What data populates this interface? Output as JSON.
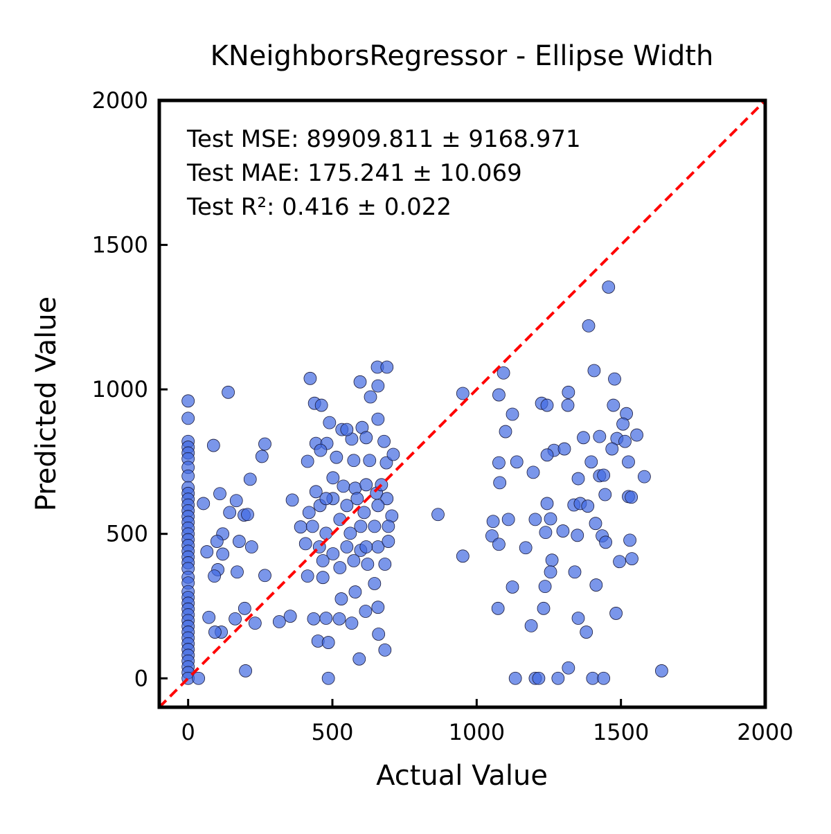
{
  "chart_data": {
    "type": "scatter",
    "title": "KNeighborsRegressor - Ellipse Width",
    "x_label": "Actual Value",
    "y_label": "Predicted Value",
    "annotations": [
      "Test MSE: 89909.811 ± 9168.971",
      "Test MAE: 175.241 ± 10.069",
      "Test R²: 0.416 ± 0.022"
    ],
    "xlim": [
      -100,
      2000
    ],
    "ylim": [
      -100,
      2000
    ],
    "xticks": [
      0,
      500,
      1000,
      1500,
      2000
    ],
    "yticks": [
      0,
      500,
      1000,
      1500,
      2000
    ],
    "color": "#4169e1",
    "edge_color": "#1a1a3a",
    "identity_line_color": "#ff0000",
    "series": [
      {
        "x": [
          0,
          0,
          0,
          0,
          0,
          0,
          0,
          0,
          0,
          0,
          0,
          0,
          0,
          0,
          0,
          0,
          0,
          0,
          0,
          0,
          0,
          0,
          0,
          0,
          0,
          0,
          0,
          0,
          0,
          0,
          0,
          0,
          0,
          0,
          0,
          0,
          0,
          0,
          0,
          0,
          0,
          36,
          139,
          88,
          266,
          256,
          215,
          53,
          110,
          167,
          144,
          194,
          206,
          120,
          100,
          177,
          220,
          65,
          103,
          170,
          266,
          91,
          72,
          115,
          93,
          196,
          232,
          199,
          316,
          354,
          163,
          120,
          423,
          656,
          689,
          596,
          658,
          632,
          438,
          462,
          658,
          490,
          533,
          603,
          443,
          481,
          567,
          617,
          679,
          414,
          459,
          514,
          574,
          629,
          687,
          711,
          361,
          419,
          390,
          457,
          502,
          538,
          579,
          617,
          653,
          689,
          706,
          431,
          478,
          526,
          562,
          598,
          646,
          694,
          407,
          455,
          502,
          550,
          598,
          658,
          694,
          467,
          526,
          574,
          622,
          682,
          414,
          467,
          531,
          579,
          646,
          658,
          615,
          567,
          524,
          435,
          478,
          450,
          486,
          660,
          682,
          593,
          486,
          866,
          550,
          502,
          550,
          610,
          658,
          478,
          617,
          443,
          586,
          670,
          1457,
          1388,
          1407,
          1478,
          1093,
          1077,
          952,
          1318,
          1225,
          1244,
          1316,
          1124,
          1474,
          1519,
          1507,
          1100,
          1370,
          1426,
          1486,
          1514,
          1555,
          1469,
          1268,
          1244,
          1304,
          1077,
          1139,
          1526,
          1397,
          1196,
          1080,
          1352,
          1426,
          1440,
          1581,
          1244,
          1337,
          1359,
          1385,
          1445,
          1526,
          1536,
          1057,
          1110,
          1203,
          1256,
          1412,
          1239,
          1299,
          1349,
          1053,
          1435,
          1077,
          1170,
          1447,
          1531,
          1261,
          1538,
          1495,
          1256,
          1340,
          1124,
          1237,
          1414,
          1074,
          1232,
          1352,
          1189,
          1380,
          1483,
          1318,
          1134,
          1203,
          1215,
          1282,
          1402,
          1440,
          1641,
          952
        ],
        "values": [
          960,
          900,
          820,
          800,
          780,
          760,
          730,
          700,
          660,
          640,
          620,
          600,
          580,
          560,
          540,
          520,
          500,
          480,
          460,
          440,
          420,
          400,
          380,
          350,
          330,
          300,
          280,
          260,
          240,
          220,
          200,
          180,
          160,
          140,
          120,
          100,
          80,
          60,
          40,
          20,
          0,
          0,
          990,
          806,
          811,
          768,
          689,
          605,
          639,
          615,
          574,
          565,
          567,
          500,
          474,
          474,
          455,
          438,
          376,
          368,
          356,
          354,
          211,
          160,
          160,
          242,
          191,
          26,
          196,
          215,
          206,
          430,
          1038,
          1077,
          1077,
          1026,
          1012,
          974,
          952,
          945,
          897,
          885,
          861,
          868,
          813,
          813,
          828,
          833,
          820,
          751,
          789,
          765,
          754,
          754,
          746,
          775,
          617,
          574,
          524,
          598,
          622,
          665,
          658,
          670,
          641,
          622,
          562,
          526,
          502,
          550,
          502,
          526,
          526,
          526,
          466,
          455,
          431,
          455,
          443,
          455,
          474,
          407,
          383,
          407,
          395,
          395,
          354,
          349,
          275,
          299,
          328,
          246,
          232,
          191,
          206,
          206,
          208,
          129,
          124,
          153,
          98,
          67,
          0,
          567,
          861,
          694,
          598,
          574,
          598,
          622,
          455,
          646,
          622,
          670,
          1354,
          1220,
          1065,
          1036,
          1057,
          981,
          986,
          990,
          952,
          945,
          945,
          914,
          945,
          916,
          880,
          854,
          833,
          837,
          830,
          820,
          842,
          794,
          789,
          773,
          794,
          746,
          749,
          749,
          749,
          713,
          677,
          691,
          701,
          703,
          698,
          605,
          600,
          605,
          596,
          636,
          629,
          627,
          543,
          550,
          550,
          552,
          536,
          505,
          510,
          495,
          493,
          493,
          464,
          452,
          471,
          478,
          409,
          414,
          404,
          368,
          368,
          316,
          318,
          323,
          242,
          242,
          208,
          182,
          160,
          225,
          36,
          0,
          0,
          0,
          0,
          0,
          0,
          26,
          423
        ]
      }
    ]
  }
}
